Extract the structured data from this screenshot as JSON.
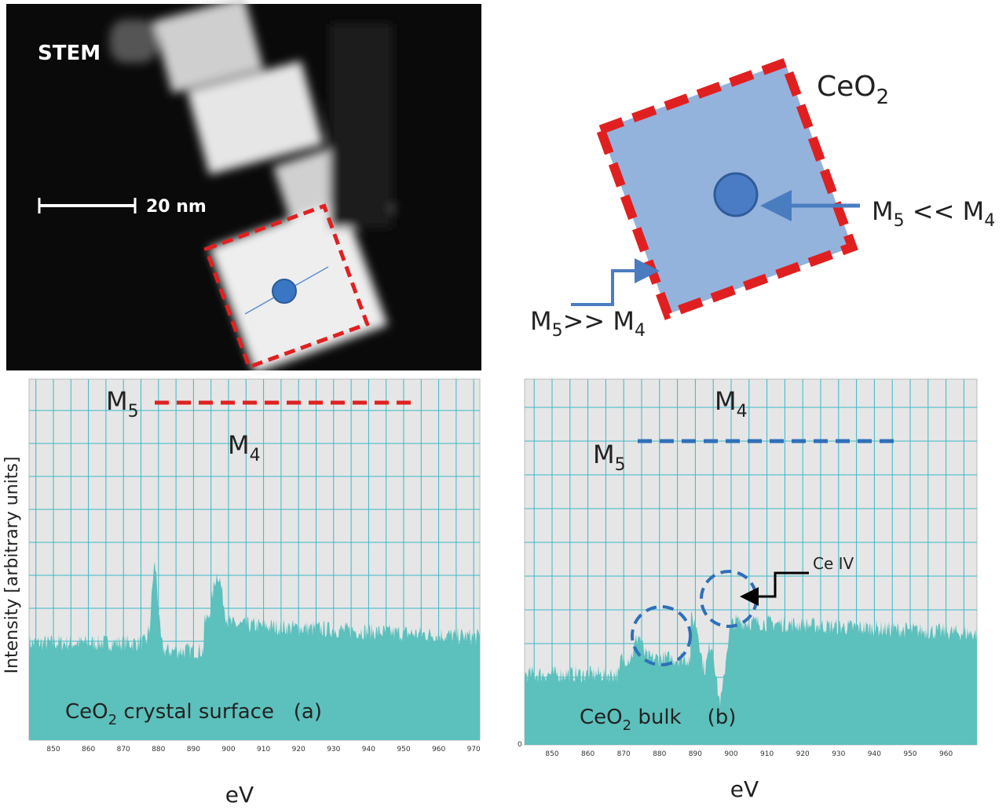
{
  "stem_panel": {
    "label": "STEM",
    "scale_bar": "20 nm"
  },
  "schematic": {
    "formula": [
      "CeO",
      "2"
    ],
    "center_note": [
      "M",
      "5",
      " << M",
      "4"
    ],
    "edge_note": [
      "M",
      "5",
      ">> M",
      "4"
    ]
  },
  "spectrum_a": {
    "y_axis_label": "Intensity [arbitrary units]",
    "x_axis_label": "eV",
    "x_ticks": [
      "850",
      "860",
      "870",
      "880",
      "890",
      "900",
      "910",
      "920",
      "930",
      "940",
      "950",
      "960",
      "970"
    ],
    "peak_m5": [
      "M",
      "5"
    ],
    "peak_m4": [
      "M",
      "4"
    ],
    "caption": [
      "CeO",
      "2",
      " crystal surface   (a)"
    ]
  },
  "spectrum_b": {
    "x_axis_label": "eV",
    "y_origin": "0",
    "x_ticks": [
      "850",
      "860",
      "870",
      "880",
      "890",
      "900",
      "910",
      "920",
      "930",
      "940",
      "950",
      "960"
    ],
    "peak_m5": [
      "M",
      "5"
    ],
    "peak_m4": [
      "M",
      "4"
    ],
    "ce_note": "Ce IV",
    "caption": [
      "CeO",
      "2",
      " bulk    (b)"
    ]
  }
}
